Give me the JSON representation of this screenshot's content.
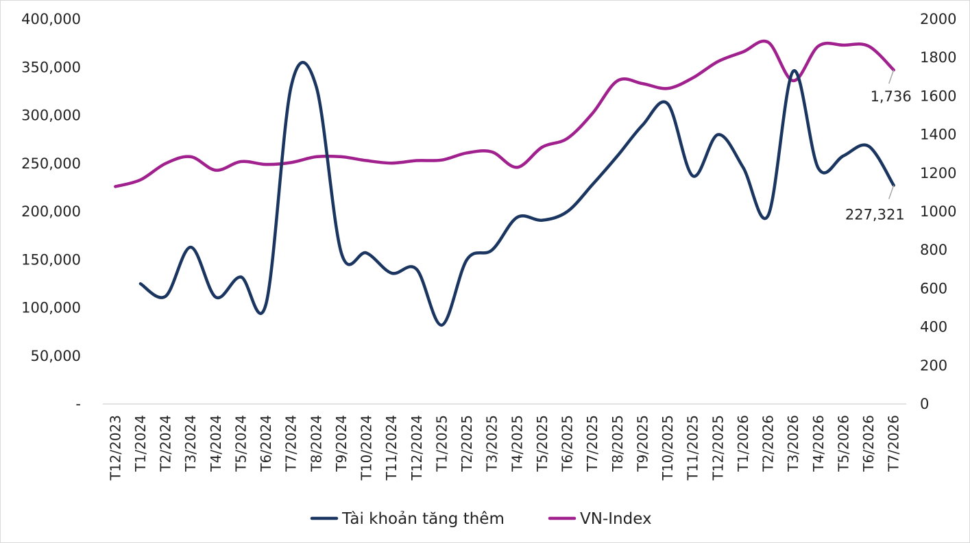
{
  "chart_data": {
    "type": "line",
    "title": "",
    "categories": [
      "T12/2023",
      "T1/2024",
      "T2/2024",
      "T3/2024",
      "T4/2024",
      "T5/2024",
      "T6/2024",
      "T7/2024",
      "T8/2024",
      "T9/2024",
      "T10/2024",
      "T11/2024",
      "T12/2024",
      "T1/2025",
      "T2/2025",
      "T3/2025",
      "T4/2025",
      "T5/2025",
      "T6/2025",
      "T7/2025",
      "T8/2025",
      "T9/2025",
      "T10/2025",
      "T11/2025",
      "T12/2025",
      "T1/2026",
      "T2/2026",
      "T3/2026",
      "T4/2026",
      "T5/2026",
      "T6/2026",
      "T7/2026"
    ],
    "y_left": {
      "ticks": [
        0,
        50000,
        100000,
        150000,
        200000,
        250000,
        300000,
        350000,
        400000
      ],
      "tick_labels": [
        "-",
        "50,000",
        "100,000",
        "150,000",
        "200,000",
        "250,000",
        "300,000",
        "350,000",
        "400,000"
      ],
      "ylim": [
        0,
        400000
      ]
    },
    "y_right": {
      "ticks": [
        0,
        200,
        400,
        600,
        800,
        1000,
        1200,
        1400,
        1600,
        1800,
        2000
      ],
      "tick_labels": [
        "0",
        "200",
        "400",
        "600",
        "800",
        "1000",
        "1200",
        "1400",
        "1600",
        "1800",
        "2000"
      ],
      "ylim": [
        0,
        2000
      ]
    },
    "series": [
      {
        "name": "Tài khoản tăng thêm",
        "axis": "left",
        "color": "#1a3560",
        "values": [
          null,
          125000,
          112000,
          163000,
          111000,
          132000,
          104000,
          330000,
          330000,
          157000,
          157000,
          136000,
          140000,
          82000,
          150000,
          160000,
          194000,
          191000,
          200000,
          228000,
          258000,
          290000,
          312000,
          237000,
          280000,
          246000,
          196000,
          346000,
          245000,
          258000,
          268000,
          227321
        ],
        "end_label": "227,321"
      },
      {
        "name": "VN-Index",
        "axis": "right",
        "color": "#a0208e",
        "values": [
          1130,
          1165,
          1250,
          1285,
          1215,
          1260,
          1245,
          1255,
          1285,
          1285,
          1265,
          1252,
          1265,
          1268,
          1305,
          1310,
          1230,
          1335,
          1380,
          1510,
          1680,
          1665,
          1640,
          1695,
          1780,
          1830,
          1880,
          1680,
          1860,
          1865,
          1860,
          1736
        ],
        "end_label": "1,736"
      }
    ],
    "legend": {
      "position": "bottom"
    },
    "grid": false
  }
}
